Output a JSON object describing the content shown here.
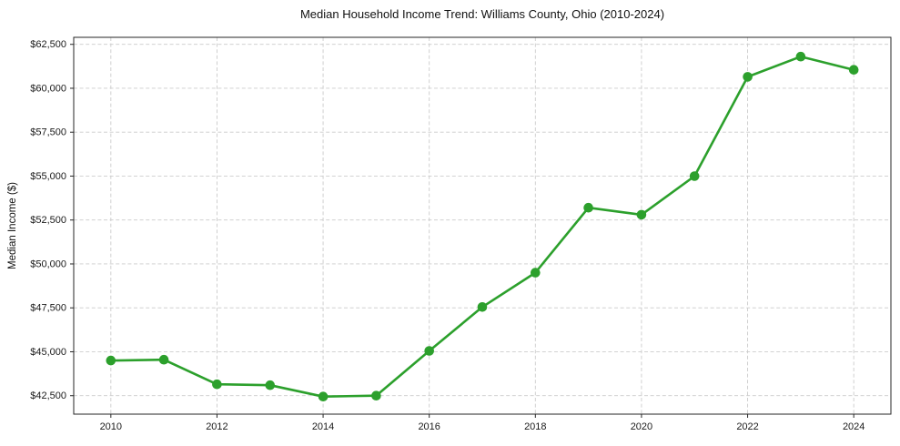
{
  "chart_data": {
    "type": "line",
    "title": "Median Household Income Trend: Williams County, Ohio (2010-2024)",
    "xlabel": "",
    "ylabel": "Median Income ($)",
    "x": [
      2010,
      2011,
      2012,
      2013,
      2014,
      2015,
      2016,
      2017,
      2018,
      2019,
      2020,
      2021,
      2022,
      2023,
      2024
    ],
    "series": [
      {
        "name": "Median Household Income",
        "values": [
          44500,
          44550,
          43150,
          43100,
          42450,
          42500,
          45050,
          47550,
          49500,
          53200,
          52800,
          55000,
          60650,
          61800,
          61050
        ]
      }
    ],
    "xlim": [
      2009.3,
      2024.7
    ],
    "ylim": [
      41450,
      62900
    ],
    "x_ticks": [
      2010,
      2012,
      2014,
      2016,
      2018,
      2020,
      2022,
      2024
    ],
    "x_tick_labels": [
      "2010",
      "2012",
      "2014",
      "2016",
      "2018",
      "2020",
      "2022",
      "2024"
    ],
    "y_ticks": [
      42500,
      45000,
      47500,
      50000,
      52500,
      55000,
      57500,
      60000,
      62500
    ],
    "y_tick_labels": [
      "$42,500",
      "$45,000",
      "$47,500",
      "$50,000",
      "$52,500",
      "$55,000",
      "$57,500",
      "$60,000",
      "$62,500"
    ],
    "grid": true,
    "grid_style": "dashed",
    "legend": "none",
    "line_color": "#2ca02c",
    "marker": "circle",
    "marker_color": "#2ca02c",
    "grid_color": "#cbcbcb",
    "axis_color": "#262626",
    "text_color": "#1a1a1a",
    "background": "#ffffff"
  }
}
